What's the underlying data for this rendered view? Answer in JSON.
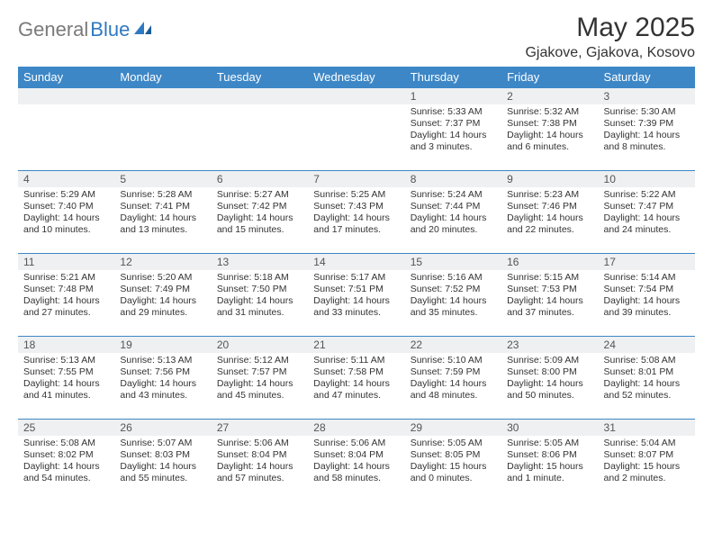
{
  "header": {
    "logo_general": "General",
    "logo_blue": "Blue",
    "month_title": "May 2025",
    "location": "Gjakove, Gjakova, Kosovo"
  },
  "style": {
    "header_bg": "#3d87c7",
    "header_text": "#ffffff",
    "daynum_bg": "#eef0f1",
    "cell_border": "#3d87c7",
    "body_font_size": 10.5,
    "daynum_font_size": 12,
    "th_font_size": 13
  },
  "weekdays": [
    "Sunday",
    "Monday",
    "Tuesday",
    "Wednesday",
    "Thursday",
    "Friday",
    "Saturday"
  ],
  "weeks": [
    [
      {
        "blank": true
      },
      {
        "blank": true
      },
      {
        "blank": true
      },
      {
        "blank": true
      },
      {
        "day": "1",
        "sunrise": "Sunrise: 5:33 AM",
        "sunset": "Sunset: 7:37 PM",
        "dl1": "Daylight: 14 hours",
        "dl2": "and 3 minutes."
      },
      {
        "day": "2",
        "sunrise": "Sunrise: 5:32 AM",
        "sunset": "Sunset: 7:38 PM",
        "dl1": "Daylight: 14 hours",
        "dl2": "and 6 minutes."
      },
      {
        "day": "3",
        "sunrise": "Sunrise: 5:30 AM",
        "sunset": "Sunset: 7:39 PM",
        "dl1": "Daylight: 14 hours",
        "dl2": "and 8 minutes."
      }
    ],
    [
      {
        "day": "4",
        "sunrise": "Sunrise: 5:29 AM",
        "sunset": "Sunset: 7:40 PM",
        "dl1": "Daylight: 14 hours",
        "dl2": "and 10 minutes."
      },
      {
        "day": "5",
        "sunrise": "Sunrise: 5:28 AM",
        "sunset": "Sunset: 7:41 PM",
        "dl1": "Daylight: 14 hours",
        "dl2": "and 13 minutes."
      },
      {
        "day": "6",
        "sunrise": "Sunrise: 5:27 AM",
        "sunset": "Sunset: 7:42 PM",
        "dl1": "Daylight: 14 hours",
        "dl2": "and 15 minutes."
      },
      {
        "day": "7",
        "sunrise": "Sunrise: 5:25 AM",
        "sunset": "Sunset: 7:43 PM",
        "dl1": "Daylight: 14 hours",
        "dl2": "and 17 minutes."
      },
      {
        "day": "8",
        "sunrise": "Sunrise: 5:24 AM",
        "sunset": "Sunset: 7:44 PM",
        "dl1": "Daylight: 14 hours",
        "dl2": "and 20 minutes."
      },
      {
        "day": "9",
        "sunrise": "Sunrise: 5:23 AM",
        "sunset": "Sunset: 7:46 PM",
        "dl1": "Daylight: 14 hours",
        "dl2": "and 22 minutes."
      },
      {
        "day": "10",
        "sunrise": "Sunrise: 5:22 AM",
        "sunset": "Sunset: 7:47 PM",
        "dl1": "Daylight: 14 hours",
        "dl2": "and 24 minutes."
      }
    ],
    [
      {
        "day": "11",
        "sunrise": "Sunrise: 5:21 AM",
        "sunset": "Sunset: 7:48 PM",
        "dl1": "Daylight: 14 hours",
        "dl2": "and 27 minutes."
      },
      {
        "day": "12",
        "sunrise": "Sunrise: 5:20 AM",
        "sunset": "Sunset: 7:49 PM",
        "dl1": "Daylight: 14 hours",
        "dl2": "and 29 minutes."
      },
      {
        "day": "13",
        "sunrise": "Sunrise: 5:18 AM",
        "sunset": "Sunset: 7:50 PM",
        "dl1": "Daylight: 14 hours",
        "dl2": "and 31 minutes."
      },
      {
        "day": "14",
        "sunrise": "Sunrise: 5:17 AM",
        "sunset": "Sunset: 7:51 PM",
        "dl1": "Daylight: 14 hours",
        "dl2": "and 33 minutes."
      },
      {
        "day": "15",
        "sunrise": "Sunrise: 5:16 AM",
        "sunset": "Sunset: 7:52 PM",
        "dl1": "Daylight: 14 hours",
        "dl2": "and 35 minutes."
      },
      {
        "day": "16",
        "sunrise": "Sunrise: 5:15 AM",
        "sunset": "Sunset: 7:53 PM",
        "dl1": "Daylight: 14 hours",
        "dl2": "and 37 minutes."
      },
      {
        "day": "17",
        "sunrise": "Sunrise: 5:14 AM",
        "sunset": "Sunset: 7:54 PM",
        "dl1": "Daylight: 14 hours",
        "dl2": "and 39 minutes."
      }
    ],
    [
      {
        "day": "18",
        "sunrise": "Sunrise: 5:13 AM",
        "sunset": "Sunset: 7:55 PM",
        "dl1": "Daylight: 14 hours",
        "dl2": "and 41 minutes."
      },
      {
        "day": "19",
        "sunrise": "Sunrise: 5:13 AM",
        "sunset": "Sunset: 7:56 PM",
        "dl1": "Daylight: 14 hours",
        "dl2": "and 43 minutes."
      },
      {
        "day": "20",
        "sunrise": "Sunrise: 5:12 AM",
        "sunset": "Sunset: 7:57 PM",
        "dl1": "Daylight: 14 hours",
        "dl2": "and 45 minutes."
      },
      {
        "day": "21",
        "sunrise": "Sunrise: 5:11 AM",
        "sunset": "Sunset: 7:58 PM",
        "dl1": "Daylight: 14 hours",
        "dl2": "and 47 minutes."
      },
      {
        "day": "22",
        "sunrise": "Sunrise: 5:10 AM",
        "sunset": "Sunset: 7:59 PM",
        "dl1": "Daylight: 14 hours",
        "dl2": "and 48 minutes."
      },
      {
        "day": "23",
        "sunrise": "Sunrise: 5:09 AM",
        "sunset": "Sunset: 8:00 PM",
        "dl1": "Daylight: 14 hours",
        "dl2": "and 50 minutes."
      },
      {
        "day": "24",
        "sunrise": "Sunrise: 5:08 AM",
        "sunset": "Sunset: 8:01 PM",
        "dl1": "Daylight: 14 hours",
        "dl2": "and 52 minutes."
      }
    ],
    [
      {
        "day": "25",
        "sunrise": "Sunrise: 5:08 AM",
        "sunset": "Sunset: 8:02 PM",
        "dl1": "Daylight: 14 hours",
        "dl2": "and 54 minutes."
      },
      {
        "day": "26",
        "sunrise": "Sunrise: 5:07 AM",
        "sunset": "Sunset: 8:03 PM",
        "dl1": "Daylight: 14 hours",
        "dl2": "and 55 minutes."
      },
      {
        "day": "27",
        "sunrise": "Sunrise: 5:06 AM",
        "sunset": "Sunset: 8:04 PM",
        "dl1": "Daylight: 14 hours",
        "dl2": "and 57 minutes."
      },
      {
        "day": "28",
        "sunrise": "Sunrise: 5:06 AM",
        "sunset": "Sunset: 8:04 PM",
        "dl1": "Daylight: 14 hours",
        "dl2": "and 58 minutes."
      },
      {
        "day": "29",
        "sunrise": "Sunrise: 5:05 AM",
        "sunset": "Sunset: 8:05 PM",
        "dl1": "Daylight: 15 hours",
        "dl2": "and 0 minutes."
      },
      {
        "day": "30",
        "sunrise": "Sunrise: 5:05 AM",
        "sunset": "Sunset: 8:06 PM",
        "dl1": "Daylight: 15 hours",
        "dl2": "and 1 minute."
      },
      {
        "day": "31",
        "sunrise": "Sunrise: 5:04 AM",
        "sunset": "Sunset: 8:07 PM",
        "dl1": "Daylight: 15 hours",
        "dl2": "and 2 minutes."
      }
    ]
  ]
}
